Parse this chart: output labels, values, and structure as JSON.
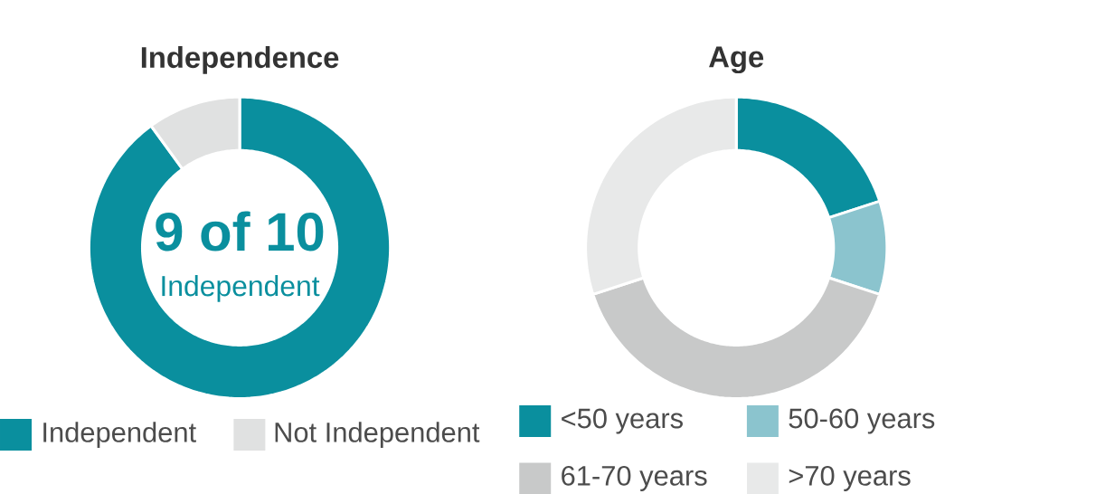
{
  "chart_data": [
    {
      "type": "donut",
      "title": "Independence",
      "categories": [
        "Independent",
        "Not Independent"
      ],
      "values": [
        90,
        10
      ],
      "colors": [
        "#0a8f9e",
        "#e0e1e1"
      ],
      "legend": "bottom",
      "annotations": [
        "9 of 10",
        "Independent"
      ]
    },
    {
      "type": "donut",
      "title": "Age",
      "categories": [
        "<50 years",
        "50-60 years",
        "61-70 years",
        ">70 years"
      ],
      "values": [
        20,
        10,
        40,
        30
      ],
      "colors": [
        "#0a8f9e",
        "#8bc4ce",
        "#c8c9c9",
        "#e8e9e9"
      ],
      "legend": "bottom"
    }
  ]
}
